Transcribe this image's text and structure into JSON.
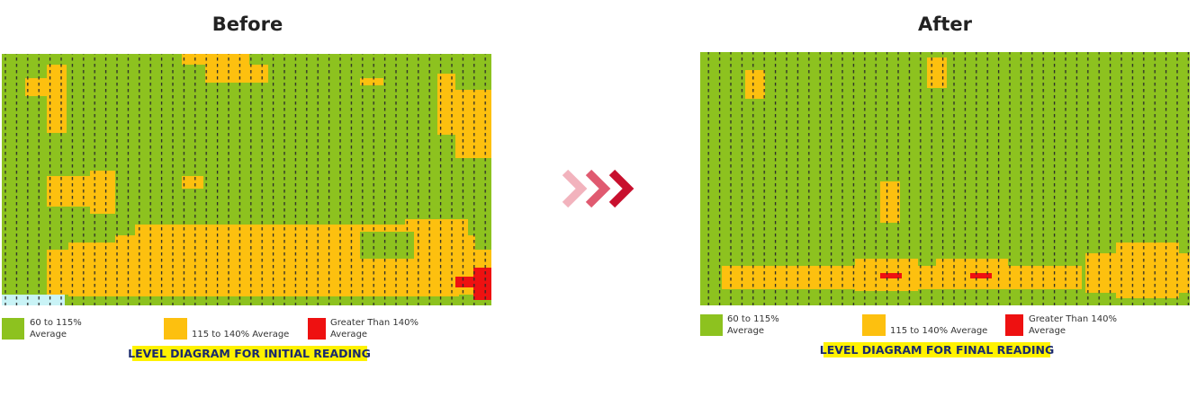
{
  "panels": [
    {
      "title": "Before",
      "legend": [
        {
          "lines": [
            "60 to 115%",
            "Average"
          ]
        },
        {
          "lines": [
            "115 to 140% Average"
          ]
        },
        {
          "lines": [
            "Greater Than 140%",
            "Average"
          ]
        }
      ],
      "caption": "LEVEL DIAGRAM FOR INITIAL READING"
    },
    {
      "title": "After",
      "legend": [
        {
          "lines": [
            "60 to 115%",
            "Average"
          ]
        },
        {
          "lines": [
            "115 to 140% Average"
          ]
        },
        {
          "lines": [
            "Greater Than 140%",
            "Average"
          ]
        }
      ],
      "caption": "LEVEL DIAGRAM FOR FINAL READING"
    }
  ]
}
